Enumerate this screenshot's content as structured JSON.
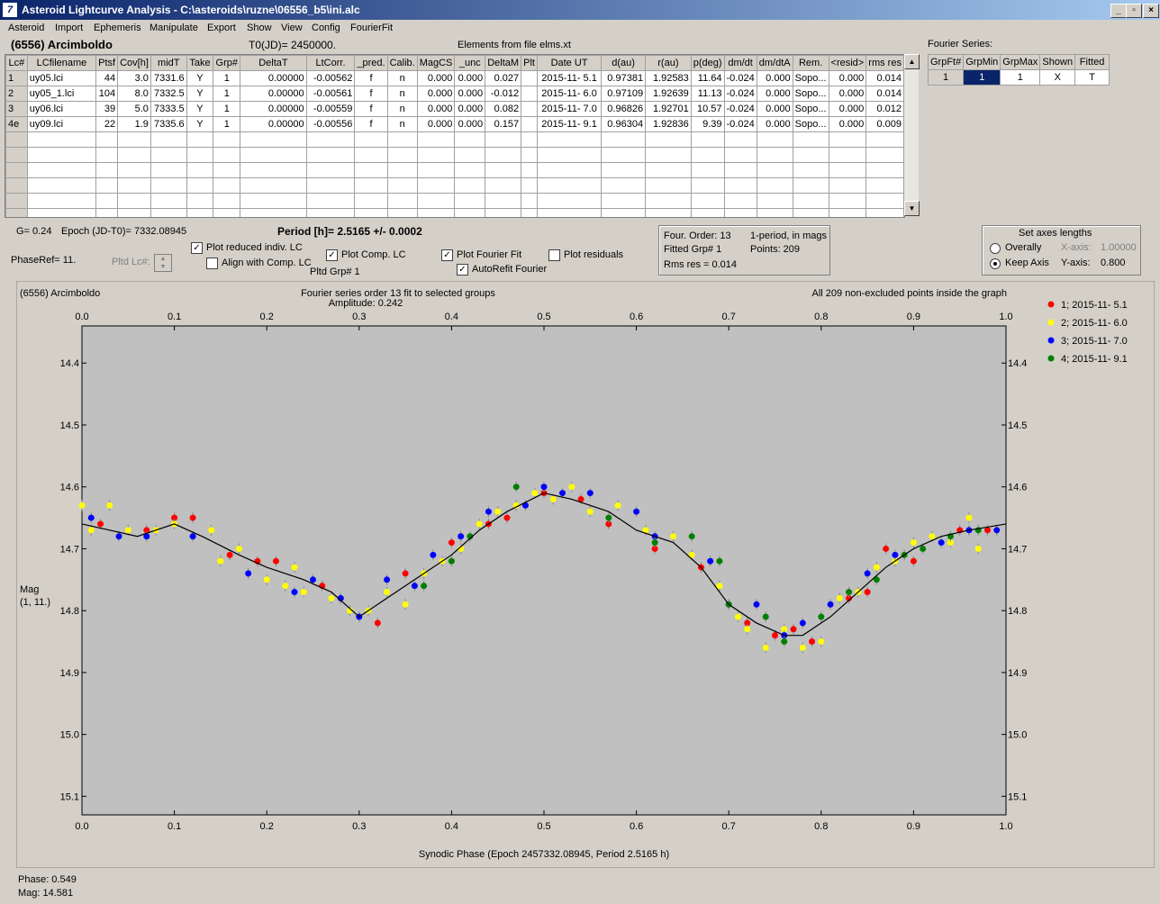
{
  "window": {
    "title": "Asteroid Lightcurve Analysis - C:\\asteroids\\ruzne\\06556_b5\\ini.alc",
    "icon_glyph": "7"
  },
  "menu": [
    "Asteroid",
    "Import",
    "Ephemeris",
    "Manipulate",
    "Export",
    "Show",
    "View",
    "Config",
    "FourierFit"
  ],
  "header": {
    "asteroid_name": "(6556) Arcimboldo",
    "t0": "T0(JD)= 2450000.",
    "elements": "Elements from file elms.xt"
  },
  "table": {
    "columns": [
      "Lc#",
      "LCfilename",
      "Ptsf",
      "Cov[h]",
      "midT",
      "Take",
      "Grp#",
      "DeltaT",
      "LtCorr.",
      "_pred.",
      "Calib.",
      "MagCS",
      "_unc",
      "DeltaM",
      "Plt",
      "Date UT",
      "d(au)",
      "r(au)",
      "p(deg)",
      "dm/dt",
      "dm/dtA",
      "Rem.",
      "<resid>",
      "rms res"
    ],
    "rows": [
      [
        "1",
        "uy05.lci",
        "44",
        "3.0",
        "7331.6",
        "Y",
        "1",
        "0.00000",
        "-0.00562",
        "f",
        "n",
        "0.000",
        "0.000",
        "0.027",
        "",
        "2015-11- 5.1",
        "0.97381",
        "1.92583",
        "11.64",
        "-0.024",
        "0.000",
        "Sopo...",
        "0.000",
        "0.014"
      ],
      [
        "2",
        "uy05_1.lci",
        "104",
        "8.0",
        "7332.5",
        "Y",
        "1",
        "0.00000",
        "-0.00561",
        "f",
        "n",
        "0.000",
        "0.000",
        "-0.012",
        "",
        "2015-11- 6.0",
        "0.97109",
        "1.92639",
        "11.13",
        "-0.024",
        "0.000",
        "Sopo...",
        "0.000",
        "0.014"
      ],
      [
        "3",
        "uy06.lci",
        "39",
        "5.0",
        "7333.5",
        "Y",
        "1",
        "0.00000",
        "-0.00559",
        "f",
        "n",
        "0.000",
        "0.000",
        "0.082",
        "",
        "2015-11- 7.0",
        "0.96826",
        "1.92701",
        "10.57",
        "-0.024",
        "0.000",
        "Sopo...",
        "0.000",
        "0.012"
      ],
      [
        "4e",
        "uy09.lci",
        "22",
        "1.9",
        "7335.6",
        "Y",
        "1",
        "0.00000",
        "-0.00556",
        "f",
        "n",
        "0.000",
        "0.000",
        "0.157",
        "",
        "2015-11- 9.1",
        "0.96304",
        "1.92836",
        "9.39",
        "-0.024",
        "0.000",
        "Sopo...",
        "0.000",
        "0.009"
      ]
    ],
    "empty_rows": 6
  },
  "fourier_series": {
    "label": "Fourier Series:",
    "columns": [
      "GrpFt#",
      "GrpMin",
      "GrpMax",
      "Shown",
      "Fitted"
    ],
    "row": [
      "1",
      "1",
      "1",
      "X",
      "T"
    ]
  },
  "params": {
    "g": "G= 0.24",
    "epoch": "Epoch (JD-T0)= 7332.08945",
    "period": "Period [h]= 2.5165 +/- 0.0002",
    "phaseref": "PhaseRef= 11.",
    "pltd_lc": "Pltd Lc#:",
    "pltd_grp": "Pltd Grp#  1"
  },
  "checkboxes": {
    "plot_reduced": {
      "label": "Plot reduced indiv. LC",
      "checked": true
    },
    "align_comp": {
      "label": "Align with Comp. LC",
      "checked": false
    },
    "plot_comp": {
      "label": "Plot Comp. LC",
      "checked": true
    },
    "plot_fourier": {
      "label": "Plot Fourier Fit",
      "checked": true
    },
    "autorefit": {
      "label": "AutoRefit Fourier",
      "checked": true
    },
    "plot_residuals": {
      "label": "Plot residuals",
      "checked": false
    }
  },
  "fit_info": {
    "order": "Four. Order: 13",
    "one_period": "1-period, in mags",
    "fitted_grp": "Fitted Grp# 1",
    "points": "Points: 209",
    "rms": "Rms res    = 0.014"
  },
  "axes_box": {
    "title": "Set axes lengths",
    "overally": "Overally",
    "keep_axis": "Keep Axis",
    "xaxis_label": "X-axis:",
    "xaxis_value": "1.00000",
    "yaxis_label": "Y-axis:",
    "yaxis_value": "0.800",
    "selected": "Keep Axis"
  },
  "chart_texts": {
    "object": "(6556) Arcimboldo",
    "title": "Fourier series order 13 fit to selected groups",
    "amplitude": "Amplitude: 0.242",
    "points_note": "All 209 non-excluded points inside the graph",
    "ylabel_1": "Mag",
    "ylabel_2": "(1, 11.)"
  },
  "status": {
    "phase": "Phase:  0.549",
    "mag": "Mag:   14.581"
  },
  "chart_data": {
    "type": "scatter",
    "xlabel": "Synodic Phase (Epoch 2457332.08945, Period 2.5165 h)",
    "ylabel": "Mag",
    "xlim": [
      0.0,
      1.0
    ],
    "ylim": [
      14.34,
      15.13
    ],
    "y_inverted": true,
    "x_ticks": [
      "0.0",
      "0.1",
      "0.2",
      "0.3",
      "0.4",
      "0.5",
      "0.6",
      "0.7",
      "0.8",
      "0.9",
      "1.0"
    ],
    "y_ticks": [
      "14.4",
      "14.5",
      "14.6",
      "14.7",
      "14.8",
      "14.9",
      "15.0",
      "15.1"
    ],
    "legend_position": "right",
    "colors": {
      "series1": "#ff0000",
      "series2": "#ffff00",
      "series3": "#0000ff",
      "series4": "#008000",
      "fit": "#000000",
      "background": "#c0c0c0"
    },
    "series": [
      {
        "name": "1; 2015-11- 5.1",
        "color": "#ff0000",
        "points": [
          [
            0.02,
            14.66
          ],
          [
            0.07,
            14.67
          ],
          [
            0.1,
            14.65
          ],
          [
            0.12,
            14.65
          ],
          [
            0.16,
            14.71
          ],
          [
            0.19,
            14.72
          ],
          [
            0.21,
            14.72
          ],
          [
            0.26,
            14.76
          ],
          [
            0.28,
            14.78
          ],
          [
            0.32,
            14.82
          ],
          [
            0.35,
            14.74
          ],
          [
            0.4,
            14.69
          ],
          [
            0.44,
            14.66
          ],
          [
            0.46,
            14.65
          ],
          [
            0.5,
            14.61
          ],
          [
            0.54,
            14.62
          ],
          [
            0.57,
            14.66
          ],
          [
            0.62,
            14.7
          ],
          [
            0.67,
            14.73
          ],
          [
            0.72,
            14.82
          ],
          [
            0.75,
            14.84
          ],
          [
            0.77,
            14.83
          ],
          [
            0.79,
            14.85
          ],
          [
            0.83,
            14.78
          ],
          [
            0.85,
            14.77
          ],
          [
            0.87,
            14.7
          ],
          [
            0.9,
            14.72
          ],
          [
            0.95,
            14.67
          ],
          [
            0.98,
            14.67
          ]
        ]
      },
      {
        "name": "2; 2015-11- 6.0",
        "color": "#ffff00",
        "points": [
          [
            0.0,
            14.63
          ],
          [
            0.01,
            14.67
          ],
          [
            0.03,
            14.63
          ],
          [
            0.05,
            14.67
          ],
          [
            0.08,
            14.67
          ],
          [
            0.1,
            14.66
          ],
          [
            0.14,
            14.67
          ],
          [
            0.15,
            14.72
          ],
          [
            0.17,
            14.7
          ],
          [
            0.2,
            14.75
          ],
          [
            0.22,
            14.76
          ],
          [
            0.23,
            14.73
          ],
          [
            0.24,
            14.77
          ],
          [
            0.27,
            14.78
          ],
          [
            0.29,
            14.8
          ],
          [
            0.31,
            14.8
          ],
          [
            0.33,
            14.77
          ],
          [
            0.35,
            14.79
          ],
          [
            0.37,
            14.74
          ],
          [
            0.39,
            14.72
          ],
          [
            0.41,
            14.7
          ],
          [
            0.43,
            14.66
          ],
          [
            0.45,
            14.64
          ],
          [
            0.47,
            14.63
          ],
          [
            0.49,
            14.61
          ],
          [
            0.51,
            14.62
          ],
          [
            0.53,
            14.6
          ],
          [
            0.55,
            14.64
          ],
          [
            0.58,
            14.63
          ],
          [
            0.61,
            14.67
          ],
          [
            0.64,
            14.68
          ],
          [
            0.66,
            14.71
          ],
          [
            0.69,
            14.76
          ],
          [
            0.71,
            14.81
          ],
          [
            0.72,
            14.83
          ],
          [
            0.74,
            14.86
          ],
          [
            0.76,
            14.83
          ],
          [
            0.78,
            14.86
          ],
          [
            0.8,
            14.85
          ],
          [
            0.82,
            14.78
          ],
          [
            0.84,
            14.77
          ],
          [
            0.86,
            14.73
          ],
          [
            0.88,
            14.72
          ],
          [
            0.9,
            14.69
          ],
          [
            0.92,
            14.68
          ],
          [
            0.94,
            14.69
          ],
          [
            0.96,
            14.65
          ],
          [
            0.97,
            14.7
          ],
          [
            0.99,
            14.67
          ]
        ]
      },
      {
        "name": "3; 2015-11- 7.0",
        "color": "#0000ff",
        "points": [
          [
            0.01,
            14.65
          ],
          [
            0.04,
            14.68
          ],
          [
            0.07,
            14.68
          ],
          [
            0.12,
            14.68
          ],
          [
            0.18,
            14.74
          ],
          [
            0.23,
            14.77
          ],
          [
            0.25,
            14.75
          ],
          [
            0.28,
            14.78
          ],
          [
            0.3,
            14.81
          ],
          [
            0.33,
            14.75
          ],
          [
            0.36,
            14.76
          ],
          [
            0.38,
            14.71
          ],
          [
            0.41,
            14.68
          ],
          [
            0.44,
            14.64
          ],
          [
            0.48,
            14.63
          ],
          [
            0.5,
            14.6
          ],
          [
            0.52,
            14.61
          ],
          [
            0.55,
            14.61
          ],
          [
            0.6,
            14.64
          ],
          [
            0.62,
            14.68
          ],
          [
            0.68,
            14.72
          ],
          [
            0.7,
            14.79
          ],
          [
            0.73,
            14.79
          ],
          [
            0.76,
            14.84
          ],
          [
            0.78,
            14.82
          ],
          [
            0.81,
            14.79
          ],
          [
            0.85,
            14.74
          ],
          [
            0.88,
            14.71
          ],
          [
            0.93,
            14.69
          ],
          [
            0.96,
            14.67
          ],
          [
            0.99,
            14.67
          ]
        ]
      },
      {
        "name": "4; 2015-11- 9.1",
        "color": "#008000",
        "points": [
          [
            0.37,
            14.76
          ],
          [
            0.4,
            14.72
          ],
          [
            0.42,
            14.68
          ],
          [
            0.47,
            14.6
          ],
          [
            0.57,
            14.65
          ],
          [
            0.62,
            14.69
          ],
          [
            0.66,
            14.68
          ],
          [
            0.69,
            14.72
          ],
          [
            0.7,
            14.79
          ],
          [
            0.74,
            14.81
          ],
          [
            0.76,
            14.85
          ],
          [
            0.8,
            14.81
          ],
          [
            0.83,
            14.77
          ],
          [
            0.86,
            14.75
          ],
          [
            0.89,
            14.71
          ],
          [
            0.91,
            14.7
          ],
          [
            0.94,
            14.68
          ],
          [
            0.97,
            14.67
          ]
        ]
      }
    ],
    "fit_curve": [
      [
        0.0,
        14.66
      ],
      [
        0.03,
        14.67
      ],
      [
        0.06,
        14.68
      ],
      [
        0.1,
        14.66
      ],
      [
        0.13,
        14.68
      ],
      [
        0.17,
        14.71
      ],
      [
        0.2,
        14.73
      ],
      [
        0.24,
        14.75
      ],
      [
        0.27,
        14.77
      ],
      [
        0.3,
        14.81
      ],
      [
        0.33,
        14.78
      ],
      [
        0.36,
        14.75
      ],
      [
        0.4,
        14.71
      ],
      [
        0.43,
        14.67
      ],
      [
        0.46,
        14.64
      ],
      [
        0.5,
        14.61
      ],
      [
        0.53,
        14.62
      ],
      [
        0.57,
        14.64
      ],
      [
        0.6,
        14.67
      ],
      [
        0.64,
        14.69
      ],
      [
        0.67,
        14.73
      ],
      [
        0.7,
        14.79
      ],
      [
        0.73,
        14.82
      ],
      [
        0.76,
        14.84
      ],
      [
        0.78,
        14.84
      ],
      [
        0.81,
        14.81
      ],
      [
        0.84,
        14.77
      ],
      [
        0.87,
        14.73
      ],
      [
        0.9,
        14.7
      ],
      [
        0.93,
        14.68
      ],
      [
        0.96,
        14.67
      ],
      [
        1.0,
        14.66
      ]
    ]
  }
}
